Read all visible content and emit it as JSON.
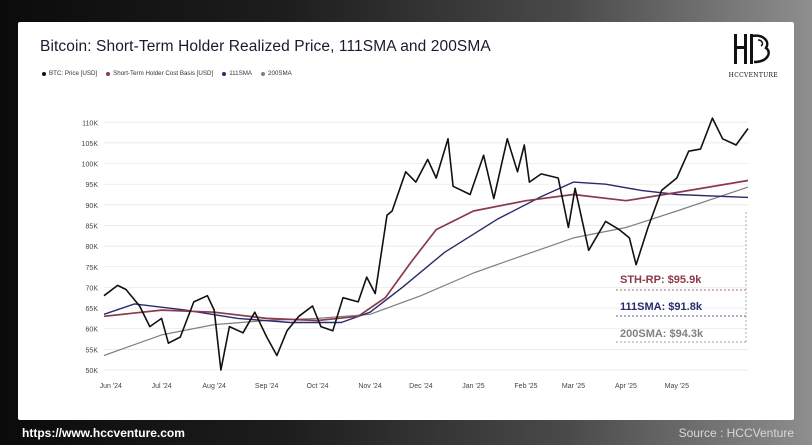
{
  "title": "Bitcoin: Short-Term Holder Realized Price, 111SMA and 200SMA",
  "logo": {
    "text": "HCCVENTURE",
    "icon": "hcc-monogram-logo"
  },
  "footer": {
    "url": "https://www.hccventure.com",
    "source": "Source : HCCVenture"
  },
  "colors": {
    "btc": "#111111",
    "sth": "#8b3a4a",
    "sma111": "#2a2a6e",
    "sma200": "#808080",
    "grid": "#e6e6e6"
  },
  "chart_data": {
    "type": "line",
    "title": "Bitcoin: Short-Term Holder Realized Price, 111SMA and 200SMA",
    "legend_placement": "top-left",
    "grid": true,
    "ylim": [
      50000,
      112000
    ],
    "y_ticks": [
      "110K",
      "105K",
      "100K",
      "95K",
      "90K",
      "85K",
      "80K",
      "75K",
      "70K",
      "65K",
      "60K",
      "55K",
      "50K"
    ],
    "y_tick_values": [
      110000,
      105000,
      100000,
      95000,
      90000,
      85000,
      80000,
      75000,
      70000,
      65000,
      60000,
      55000,
      50000
    ],
    "x_range": [
      "2024-05-28",
      "2025-06-12"
    ],
    "x_ticks": [
      {
        "label": "Jun '24",
        "date": "2024-06-01"
      },
      {
        "label": "Jul '24",
        "date": "2024-07-01"
      },
      {
        "label": "Aug '24",
        "date": "2024-08-01"
      },
      {
        "label": "Sep '24",
        "date": "2024-09-01"
      },
      {
        "label": "Oct '24",
        "date": "2024-10-01"
      },
      {
        "label": "Nov '24",
        "date": "2024-11-01"
      },
      {
        "label": "Dec '24",
        "date": "2024-12-01"
      },
      {
        "label": "Jan '25",
        "date": "2025-01-01"
      },
      {
        "label": "Feb '25",
        "date": "2025-02-01"
      },
      {
        "label": "Mar '25",
        "date": "2025-03-01"
      },
      {
        "label": "Apr '25",
        "date": "2025-04-01"
      },
      {
        "label": "May '25",
        "date": "2025-05-01"
      }
    ],
    "series": [
      {
        "name": "BTC: Price [USD]",
        "color": "#111111",
        "points": [
          [
            "2024-05-28",
            68000
          ],
          [
            "2024-06-05",
            70500
          ],
          [
            "2024-06-10",
            69500
          ],
          [
            "2024-06-18",
            65500
          ],
          [
            "2024-06-24",
            60500
          ],
          [
            "2024-07-01",
            62500
          ],
          [
            "2024-07-05",
            56500
          ],
          [
            "2024-07-12",
            58000
          ],
          [
            "2024-07-20",
            66500
          ],
          [
            "2024-07-28",
            68000
          ],
          [
            "2024-08-01",
            64500
          ],
          [
            "2024-08-05",
            50000
          ],
          [
            "2024-08-10",
            60500
          ],
          [
            "2024-08-18",
            59000
          ],
          [
            "2024-08-25",
            64000
          ],
          [
            "2024-09-01",
            58000
          ],
          [
            "2024-09-07",
            53500
          ],
          [
            "2024-09-13",
            59500
          ],
          [
            "2024-09-20",
            63000
          ],
          [
            "2024-09-28",
            65500
          ],
          [
            "2024-10-03",
            60500
          ],
          [
            "2024-10-10",
            59500
          ],
          [
            "2024-10-16",
            67500
          ],
          [
            "2024-10-25",
            66500
          ],
          [
            "2024-10-30",
            72500
          ],
          [
            "2024-11-04",
            68500
          ],
          [
            "2024-11-11",
            87500
          ],
          [
            "2024-11-14",
            88500
          ],
          [
            "2024-11-22",
            98000
          ],
          [
            "2024-11-28",
            95500
          ],
          [
            "2024-12-05",
            101000
          ],
          [
            "2024-12-10",
            96500
          ],
          [
            "2024-12-17",
            106000
          ],
          [
            "2024-12-20",
            94500
          ],
          [
            "2024-12-30",
            92500
          ],
          [
            "2025-01-07",
            102000
          ],
          [
            "2025-01-13",
            91500
          ],
          [
            "2025-01-21",
            106000
          ],
          [
            "2025-01-27",
            98000
          ],
          [
            "2025-01-31",
            104500
          ],
          [
            "2025-02-03",
            95500
          ],
          [
            "2025-02-10",
            97500
          ],
          [
            "2025-02-20",
            96500
          ],
          [
            "2025-02-26",
            84500
          ],
          [
            "2025-03-02",
            94000
          ],
          [
            "2025-03-10",
            79000
          ],
          [
            "2025-03-20",
            86000
          ],
          [
            "2025-03-28",
            84000
          ],
          [
            "2025-04-03",
            82000
          ],
          [
            "2025-04-07",
            75500
          ],
          [
            "2025-04-14",
            84500
          ],
          [
            "2025-04-22",
            93500
          ],
          [
            "2025-05-01",
            96500
          ],
          [
            "2025-05-08",
            103000
          ],
          [
            "2025-05-15",
            103500
          ],
          [
            "2025-05-22",
            111000
          ],
          [
            "2025-05-28",
            106000
          ],
          [
            "2025-06-05",
            104500
          ],
          [
            "2025-06-12",
            108500
          ]
        ]
      },
      {
        "name": "Short-Term Holder Cost Basis [USD]",
        "color": "#8b3a4a",
        "points": [
          [
            "2024-05-28",
            63000
          ],
          [
            "2024-07-01",
            64500
          ],
          [
            "2024-08-01",
            64000
          ],
          [
            "2024-09-01",
            62500
          ],
          [
            "2024-10-01",
            62000
          ],
          [
            "2024-10-25",
            63000
          ],
          [
            "2024-11-10",
            67500
          ],
          [
            "2024-11-25",
            76000
          ],
          [
            "2024-12-10",
            84000
          ],
          [
            "2025-01-01",
            88500
          ],
          [
            "2025-02-01",
            91000
          ],
          [
            "2025-03-01",
            92500
          ],
          [
            "2025-04-01",
            91000
          ],
          [
            "2025-05-01",
            93000
          ],
          [
            "2025-06-12",
            95900
          ]
        ]
      },
      {
        "name": "111SMA",
        "color": "#2a2a6e",
        "points": [
          [
            "2024-05-28",
            63500
          ],
          [
            "2024-06-15",
            66000
          ],
          [
            "2024-07-15",
            64500
          ],
          [
            "2024-08-15",
            62500
          ],
          [
            "2024-09-15",
            61500
          ],
          [
            "2024-10-15",
            61500
          ],
          [
            "2024-11-01",
            64000
          ],
          [
            "2024-11-20",
            70000
          ],
          [
            "2024-12-15",
            78500
          ],
          [
            "2025-01-15",
            86500
          ],
          [
            "2025-02-10",
            92000
          ],
          [
            "2025-03-01",
            95500
          ],
          [
            "2025-03-20",
            95000
          ],
          [
            "2025-04-10",
            93500
          ],
          [
            "2025-05-01",
            92500
          ],
          [
            "2025-06-12",
            91800
          ]
        ]
      },
      {
        "name": "200SMA",
        "color": "#808080",
        "points": [
          [
            "2024-05-28",
            53500
          ],
          [
            "2024-07-01",
            58500
          ],
          [
            "2024-08-01",
            61000
          ],
          [
            "2024-09-01",
            62000
          ],
          [
            "2024-10-01",
            62500
          ],
          [
            "2024-11-01",
            63500
          ],
          [
            "2024-12-01",
            68000
          ],
          [
            "2025-01-01",
            73500
          ],
          [
            "2025-02-01",
            78000
          ],
          [
            "2025-03-01",
            82000
          ],
          [
            "2025-04-01",
            84500
          ],
          [
            "2025-05-01",
            88500
          ],
          [
            "2025-06-12",
            94300
          ]
        ]
      }
    ],
    "annotations": [
      {
        "label": "STH-RP: $95.9k",
        "color": "#8b3a4a",
        "value": 95900
      },
      {
        "label": "111SMA: $91.8k",
        "color": "#2a2a6e",
        "value": 91800
      },
      {
        "label": "200SMA: $94.3k",
        "color": "#808080",
        "value": 94300
      }
    ]
  }
}
